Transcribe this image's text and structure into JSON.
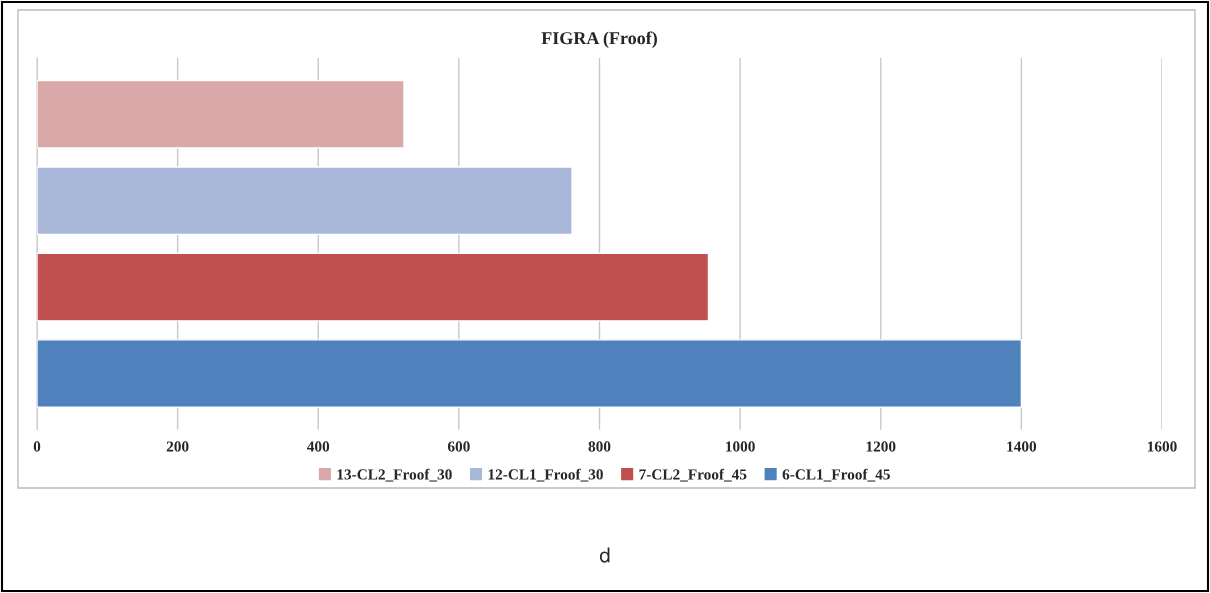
{
  "chart_data": {
    "type": "bar",
    "orientation": "horizontal",
    "title": "FIGRA (Froof)",
    "categories": [
      null,
      null,
      null,
      null
    ],
    "series": [
      {
        "name": "13-CL2_Froof_30",
        "color": "#d9a8a8",
        "values": [
          522,
          null,
          null,
          null
        ]
      },
      {
        "name": "12-CL1_Froof_30",
        "color": "#a9b8d8",
        "values": [
          null,
          761,
          null,
          null
        ]
      },
      {
        "name": "7-CL2_Froof_45",
        "color": "#c0504d",
        "values": [
          null,
          null,
          955,
          null
        ]
      },
      {
        "name": "6-CL1_Froof_45",
        "color": "#4f81bd",
        "values": [
          null,
          null,
          null,
          1400
        ]
      }
    ],
    "xlim": [
      0,
      1600
    ],
    "xticks": [
      0,
      200,
      400,
      600,
      800,
      1000,
      1200,
      1400,
      1600
    ],
    "grid": "x",
    "legend": "bottom",
    "tick_labels": "x",
    "annotations": [
      "d"
    ]
  }
}
